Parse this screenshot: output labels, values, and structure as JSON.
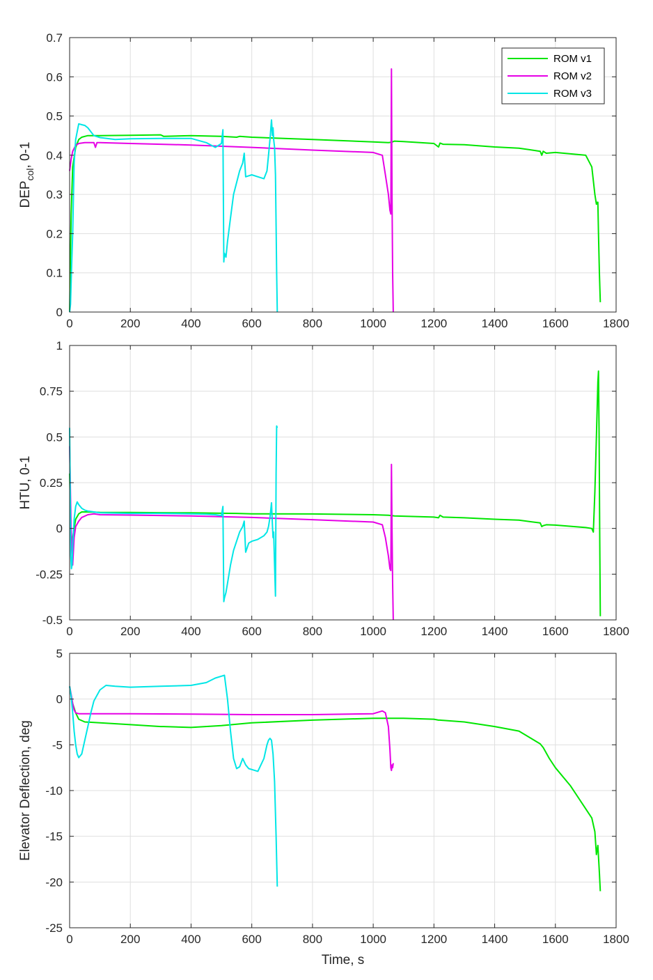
{
  "legend": [
    "ROM v1",
    "ROM v2",
    "ROM v3"
  ],
  "colors": {
    "ROM v1": "#00e600",
    "ROM v2": "#e600e6",
    "ROM v3": "#00e6e6"
  },
  "chart_data": [
    {
      "type": "line",
      "ylabel": "DEP",
      "ylabel_sub": "col",
      "ylabel_suffix": ", 0-1",
      "xlabel": "",
      "xlim": [
        0,
        1800
      ],
      "ylim": [
        0,
        0.7
      ],
      "xticks": [
        0,
        200,
        400,
        600,
        800,
        1000,
        1200,
        1400,
        1600,
        1800
      ],
      "yticks": [
        0,
        0.1,
        0.2,
        0.3,
        0.4,
        0.5,
        0.6,
        0.7
      ],
      "ytick_labels": [
        "0",
        "0.1",
        "0.2",
        "0.3",
        "0.4",
        "0.5",
        "0.6",
        "0.7"
      ],
      "grid": true,
      "legend_position": "top-right",
      "series": [
        {
          "name": "ROM v1",
          "x": [
            0,
            5,
            10,
            20,
            30,
            40,
            50,
            60,
            100,
            200,
            300,
            310,
            400,
            500,
            550,
            560,
            600,
            800,
            1000,
            1050,
            1060,
            1070,
            1100,
            1200,
            1215,
            1220,
            1230,
            1300,
            1400,
            1480,
            1550,
            1555,
            1560,
            1570,
            1600,
            1700,
            1720,
            1730,
            1735,
            1738,
            1740,
            1742,
            1745,
            1748
          ],
          "y": [
            0,
            0.25,
            0.37,
            0.42,
            0.44,
            0.446,
            0.448,
            0.45,
            0.45,
            0.451,
            0.452,
            0.448,
            0.45,
            0.448,
            0.446,
            0.448,
            0.446,
            0.44,
            0.434,
            0.432,
            0.433,
            0.436,
            0.435,
            0.43,
            0.421,
            0.431,
            0.428,
            0.427,
            0.421,
            0.418,
            0.41,
            0.4,
            0.41,
            0.405,
            0.407,
            0.4,
            0.37,
            0.3,
            0.275,
            0.28,
            0.28,
            0.2,
            0.1,
            0.025
          ]
        },
        {
          "name": "ROM v2",
          "x": [
            0,
            5,
            10,
            20,
            30,
            50,
            80,
            85,
            90,
            100,
            200,
            400,
            600,
            800,
            1000,
            1030,
            1040,
            1050,
            1055,
            1058,
            1060,
            1062,
            1064,
            1066
          ],
          "y": [
            0.36,
            0.39,
            0.41,
            0.425,
            0.43,
            0.432,
            0.432,
            0.42,
            0.432,
            0.432,
            0.43,
            0.426,
            0.42,
            0.413,
            0.407,
            0.4,
            0.35,
            0.3,
            0.26,
            0.25,
            0.62,
            0.3,
            0.1,
            0
          ]
        },
        {
          "name": "ROM v3",
          "x": [
            0,
            3,
            6,
            10,
            15,
            20,
            25,
            30,
            40,
            50,
            60,
            70,
            80,
            100,
            150,
            200,
            300,
            400,
            450,
            480,
            500,
            505,
            508,
            510,
            515,
            520,
            530,
            540,
            560,
            570,
            575,
            580,
            600,
            620,
            640,
            650,
            655,
            660,
            665,
            668,
            670,
            672,
            675,
            678,
            680,
            682,
            684
          ],
          "y": [
            0,
            0.02,
            0.1,
            0.2,
            0.38,
            0.44,
            0.46,
            0.48,
            0.478,
            0.476,
            0.47,
            0.46,
            0.45,
            0.445,
            0.44,
            0.442,
            0.443,
            0.443,
            0.432,
            0.42,
            0.43,
            0.465,
            0.128,
            0.15,
            0.14,
            0.18,
            0.24,
            0.3,
            0.36,
            0.38,
            0.405,
            0.345,
            0.35,
            0.345,
            0.34,
            0.36,
            0.4,
            0.44,
            0.49,
            0.45,
            0.47,
            0.44,
            0.42,
            0.35,
            0.22,
            0.1,
            0
          ]
        }
      ]
    },
    {
      "type": "line",
      "ylabel": "HTU, 0-1",
      "xlabel": "",
      "xlim": [
        0,
        1800
      ],
      "ylim": [
        -0.5,
        1
      ],
      "xticks": [
        0,
        200,
        400,
        600,
        800,
        1000,
        1200,
        1400,
        1600,
        1800
      ],
      "yticks": [
        -0.5,
        -0.25,
        0,
        0.25,
        0.5,
        0.75,
        1
      ],
      "ytick_labels": [
        "-0.5",
        "-0.25",
        "0",
        "0.25",
        "0.5",
        "0.75",
        "1"
      ],
      "grid": true,
      "series": [
        {
          "name": "ROM v1",
          "x": [
            0,
            5,
            10,
            20,
            30,
            40,
            60,
            100,
            200,
            300,
            400,
            500,
            550,
            600,
            800,
            1000,
            1050,
            1060,
            1070,
            1100,
            1200,
            1215,
            1220,
            1230,
            1300,
            1400,
            1480,
            1550,
            1555,
            1560,
            1570,
            1600,
            1700,
            1720,
            1725,
            1730,
            1735,
            1740,
            1742,
            1744,
            1746,
            1748
          ],
          "y": [
            0.3,
            -0.1,
            -0.05,
            0.05,
            0.08,
            0.09,
            0.09,
            0.088,
            0.087,
            0.086,
            0.085,
            0.083,
            0.082,
            0.08,
            0.079,
            0.075,
            0.072,
            0.07,
            0.068,
            0.067,
            0.062,
            0.058,
            0.072,
            0.062,
            0.058,
            0.05,
            0.045,
            0.03,
            0.01,
            0.015,
            0.02,
            0.018,
            0.005,
            0,
            -0.02,
            0.2,
            0.5,
            0.8,
            0.86,
            0.5,
            0,
            -0.48
          ]
        },
        {
          "name": "ROM v2",
          "x": [
            0,
            5,
            10,
            15,
            20,
            30,
            40,
            60,
            80,
            100,
            200,
            400,
            600,
            800,
            1000,
            1030,
            1040,
            1050,
            1055,
            1058,
            1060,
            1062,
            1064,
            1066
          ],
          "y": [
            0.45,
            0,
            -0.2,
            -0.05,
            0.01,
            0.04,
            0.06,
            0.075,
            0.08,
            0.075,
            0.073,
            0.068,
            0.06,
            0.048,
            0.035,
            0.02,
            -0.05,
            -0.15,
            -0.22,
            -0.23,
            0.35,
            0,
            -0.3,
            -0.5
          ]
        },
        {
          "name": "ROM v3",
          "x": [
            0,
            2,
            4,
            6,
            8,
            10,
            15,
            20,
            25,
            30,
            40,
            50,
            60,
            80,
            100,
            200,
            300,
            400,
            450,
            480,
            500,
            505,
            508,
            510,
            515,
            520,
            530,
            540,
            560,
            570,
            575,
            580,
            590,
            600,
            620,
            640,
            650,
            655,
            660,
            665,
            668,
            670,
            672,
            675,
            678,
            680,
            682,
            684
          ],
          "y": [
            0.55,
            0.2,
            -0.15,
            -0.22,
            -0.2,
            -0.1,
            0.05,
            0.12,
            0.145,
            0.13,
            0.11,
            0.1,
            0.095,
            0.09,
            0.085,
            0.082,
            0.082,
            0.08,
            0.078,
            0.075,
            0.07,
            0.12,
            -0.4,
            -0.38,
            -0.35,
            -0.3,
            -0.2,
            -0.12,
            -0.02,
            0.01,
            0.04,
            -0.13,
            -0.08,
            -0.07,
            -0.06,
            -0.04,
            -0.02,
            0.01,
            0.06,
            0.14,
            0.02,
            -0.05,
            -0.02,
            -0.2,
            -0.37,
            0.3,
            0.56,
            0.55
          ]
        }
      ]
    },
    {
      "type": "line",
      "ylabel": "Elevator Deflection, deg",
      "xlabel": "Time, s",
      "xlim": [
        0,
        1800
      ],
      "ylim": [
        -25,
        5
      ],
      "xticks": [
        0,
        200,
        400,
        600,
        800,
        1000,
        1200,
        1400,
        1600,
        1800
      ],
      "yticks": [
        -25,
        -20,
        -15,
        -10,
        -5,
        0,
        5
      ],
      "ytick_labels": [
        "-25",
        "-20",
        "-15",
        "-10",
        "-5",
        "0",
        "5"
      ],
      "grid": true,
      "series": [
        {
          "name": "ROM v1",
          "x": [
            0,
            10,
            20,
            30,
            50,
            100,
            200,
            300,
            310,
            400,
            500,
            600,
            800,
            1000,
            1050,
            1100,
            1200,
            1215,
            1220,
            1300,
            1400,
            1480,
            1500,
            1550,
            1560,
            1580,
            1600,
            1650,
            1700,
            1720,
            1730,
            1735,
            1740,
            1745,
            1748
          ],
          "y": [
            1.4,
            -0.5,
            -1.5,
            -2.2,
            -2.5,
            -2.6,
            -2.8,
            -3.0,
            -3.0,
            -3.1,
            -2.9,
            -2.6,
            -2.3,
            -2.1,
            -2.1,
            -2.1,
            -2.2,
            -2.3,
            -2.3,
            -2.5,
            -3.0,
            -3.5,
            -3.9,
            -4.9,
            -5.3,
            -6.5,
            -7.5,
            -9.5,
            -12.0,
            -13.0,
            -14.5,
            -17.0,
            -16.0,
            -19.0,
            -21.0
          ]
        },
        {
          "name": "ROM v2",
          "x": [
            0,
            5,
            10,
            15,
            20,
            30,
            50,
            100,
            200,
            400,
            600,
            800,
            1000,
            1020,
            1030,
            1040,
            1050,
            1055,
            1058,
            1060,
            1062,
            1064,
            1066
          ],
          "y": [
            1.4,
            0.5,
            -0.5,
            -1.2,
            -1.5,
            -1.6,
            -1.6,
            -1.6,
            -1.6,
            -1.65,
            -1.7,
            -1.7,
            -1.6,
            -1.4,
            -1.3,
            -1.5,
            -3.0,
            -5.5,
            -7.5,
            -7.8,
            -7.2,
            -7.5,
            -7.0
          ]
        },
        {
          "name": "ROM v3",
          "x": [
            0,
            5,
            10,
            15,
            20,
            25,
            30,
            40,
            50,
            60,
            70,
            80,
            100,
            120,
            150,
            200,
            300,
            400,
            450,
            480,
            500,
            510,
            520,
            530,
            540,
            550,
            560,
            570,
            580,
            590,
            600,
            620,
            640,
            650,
            655,
            660,
            665,
            670,
            675,
            680,
            684
          ],
          "y": [
            1.4,
            0.3,
            -1.5,
            -3.5,
            -5.0,
            -6.0,
            -6.4,
            -6.0,
            -4.5,
            -3.0,
            -1.5,
            -0.2,
            1.0,
            1.5,
            1.4,
            1.3,
            1.4,
            1.5,
            1.8,
            2.3,
            2.5,
            2.6,
            0,
            -3.5,
            -6.5,
            -7.6,
            -7.4,
            -6.5,
            -7.2,
            -7.6,
            -7.7,
            -7.9,
            -6.5,
            -5.0,
            -4.5,
            -4.3,
            -4.5,
            -6.0,
            -9.0,
            -15.0,
            -20.5
          ]
        }
      ]
    }
  ]
}
